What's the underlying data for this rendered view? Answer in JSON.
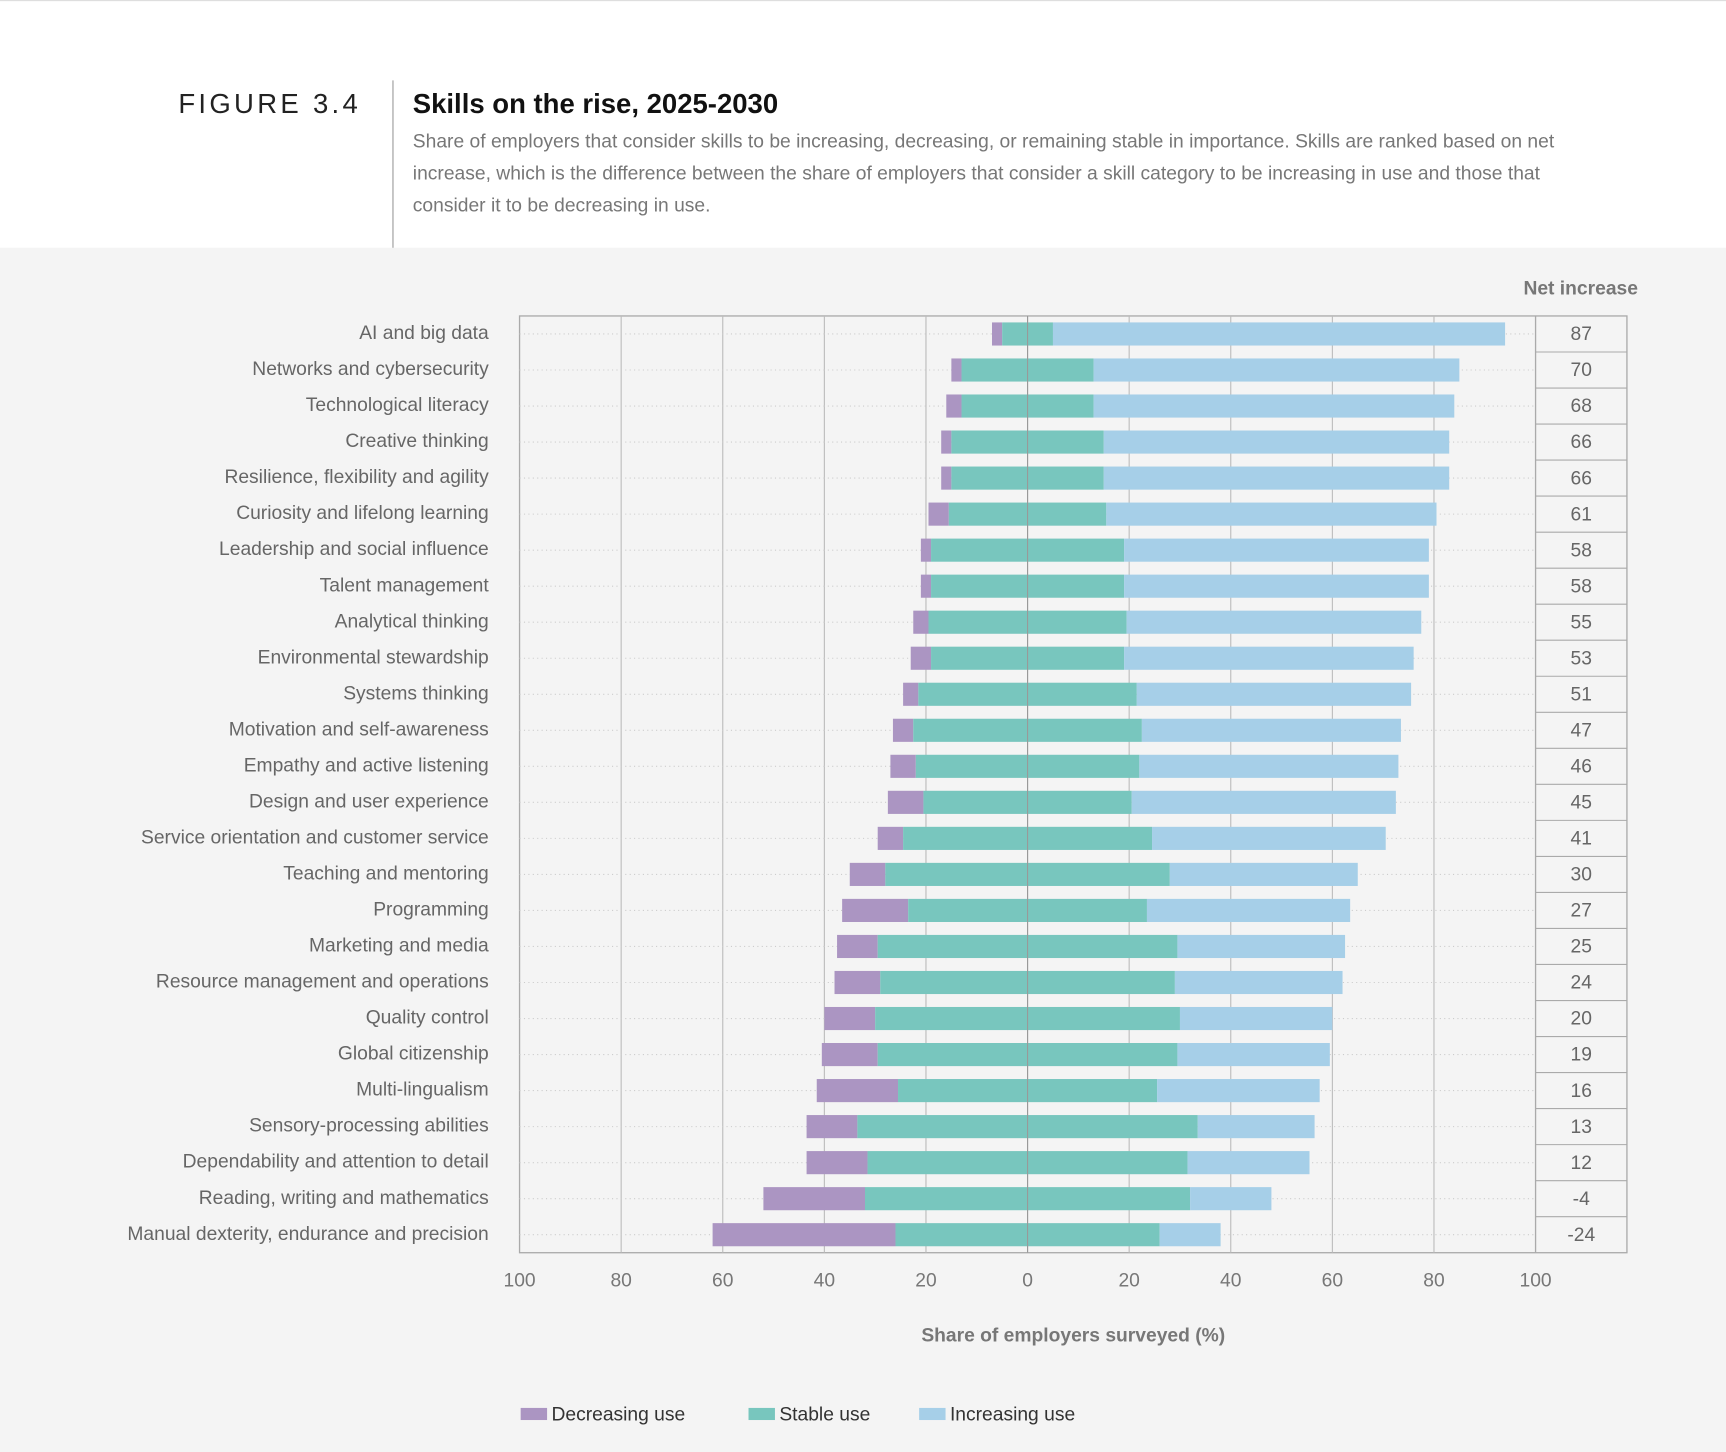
{
  "chart_data": {
    "type": "diverging_bar",
    "figure_label": "FIGURE 3.4",
    "title": "Skills on the rise, 2025-2030",
    "subtitle": "Share of employers that consider skills to be increasing, decreasing, or remaining stable in importance. Skills are ranked based on net increase, which is the difference between the share of employers that consider a skill category to be increasing in use and those that consider it to be decreasing in use.",
    "x_label": "Share of employers surveyed (%)",
    "net_title": "Net increase",
    "categories": [
      "AI and big data",
      "Networks and cybersecurity",
      "Technological literacy",
      "Creative thinking",
      "Resilience, flexibility and agility",
      "Curiosity and lifelong learning",
      "Leadership and social influence",
      "Talent management",
      "Analytical thinking",
      "Environmental stewardship",
      "Systems thinking",
      "Motivation and self-awareness",
      "Empathy and active listening",
      "Design and user experience",
      "Service orientation and customer service",
      "Teaching and mentoring",
      "Programming",
      "Marketing and media",
      "Resource management and operations",
      "Quality control",
      "Global citizenship",
      "Multi-lingualism",
      "Sensory-processing abilities",
      "Dependability and attention to detail",
      "Reading, writing and mathematics",
      "Manual dexterity, endurance and precision"
    ],
    "series": [
      {
        "name": "Decreasing use",
        "color": "#ab95c2",
        "values": [
          2,
          2,
          3,
          2,
          2,
          4,
          2,
          2,
          3,
          4,
          3,
          4,
          5,
          7,
          5,
          7,
          13,
          8,
          9,
          10,
          11,
          16,
          10,
          12,
          20,
          36
        ]
      },
      {
        "name": "Stable use",
        "color": "#78c6be",
        "values": [
          10,
          26,
          26,
          30,
          30,
          31,
          38,
          38,
          39,
          38,
          43,
          45,
          44,
          41,
          49,
          56,
          47,
          59,
          58,
          60,
          59,
          51,
          67,
          63,
          64,
          52
        ]
      },
      {
        "name": "Increasing use",
        "color": "#a6cfe8",
        "values": [
          89,
          72,
          71,
          68,
          68,
          65,
          60,
          60,
          58,
          57,
          54,
          51,
          51,
          52,
          46,
          37,
          40,
          33,
          33,
          30,
          30,
          32,
          23,
          24,
          16,
          12
        ]
      }
    ],
    "net_increase": [
      87,
      70,
      68,
      66,
      66,
      61,
      58,
      58,
      55,
      53,
      51,
      47,
      46,
      45,
      41,
      30,
      27,
      25,
      24,
      20,
      19,
      16,
      13,
      12,
      -4,
      -24
    ],
    "xlim": [
      -100,
      100
    ],
    "xticks": [
      {
        "value": -100,
        "label": "100"
      },
      {
        "value": -80,
        "label": "80"
      },
      {
        "value": -60,
        "label": "60"
      },
      {
        "value": -40,
        "label": "40"
      },
      {
        "value": -20,
        "label": "20"
      },
      0,
      20,
      40,
      60,
      80,
      100
    ],
    "grid": true
  }
}
